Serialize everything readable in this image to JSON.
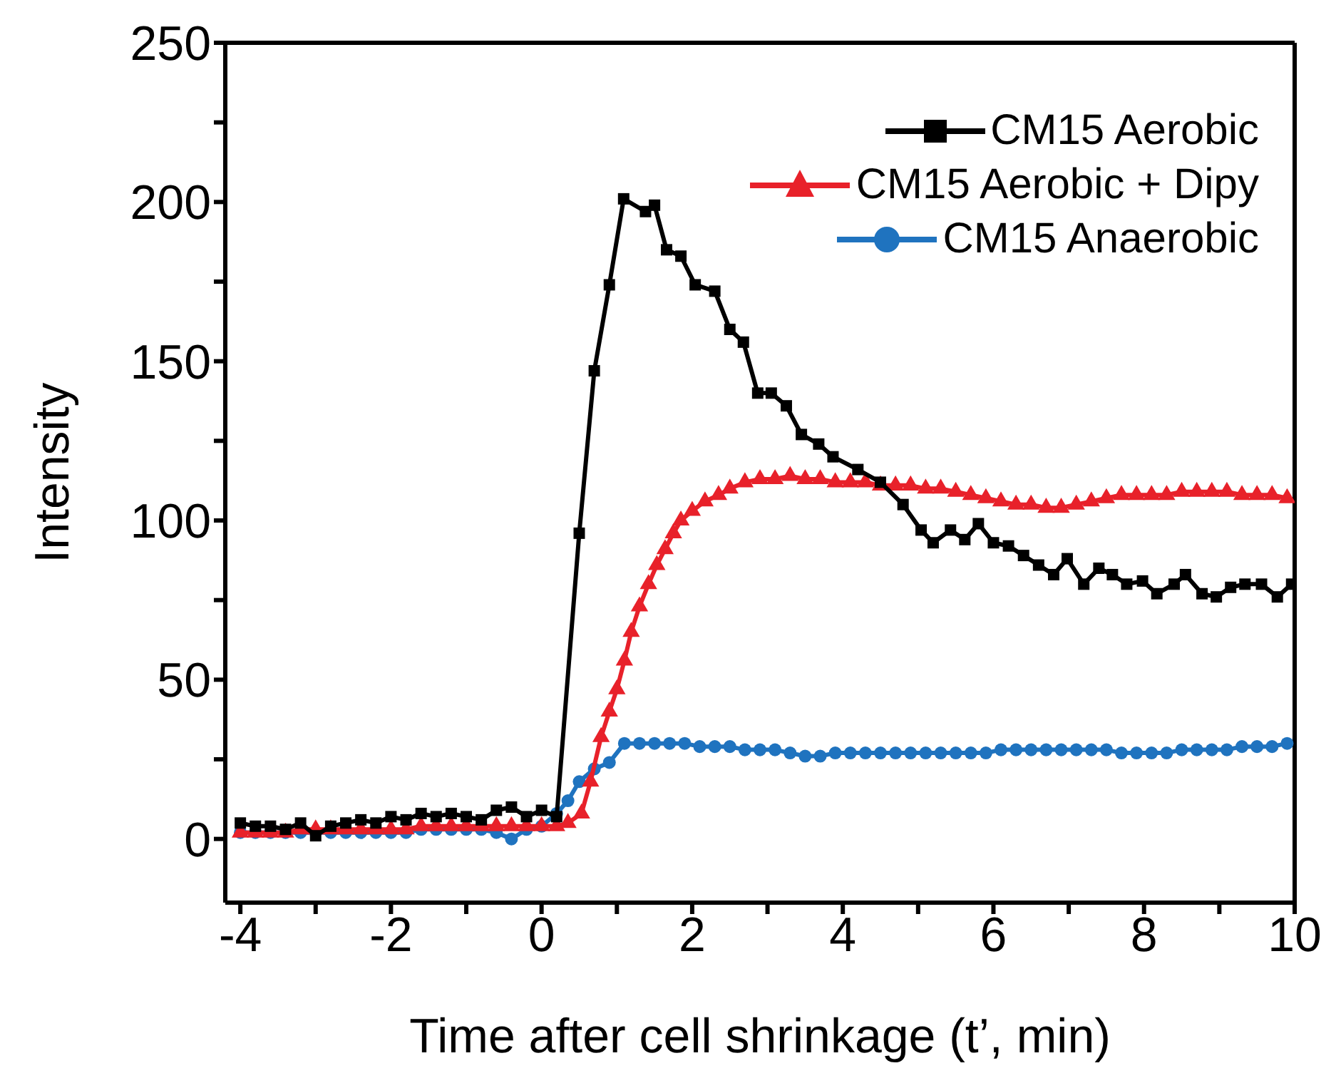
{
  "chart_data": {
    "type": "line",
    "xlabel": "Time after cell shrinkage (t’, min)",
    "ylabel": "Intensity",
    "xlim": [
      -4.2,
      10
    ],
    "ylim": [
      -20,
      250
    ],
    "xticks": [
      -4,
      {
        "value": -3,
        "label": null
      },
      -2,
      {
        "value": -1,
        "label": null
      },
      0,
      {
        "value": 1,
        "label": null
      },
      2,
      {
        "value": 3,
        "label": null
      },
      4,
      {
        "value": 5,
        "label": null
      },
      6,
      {
        "value": 7,
        "label": null
      },
      8,
      {
        "value": 9,
        "label": null
      },
      10
    ],
    "yticks": [
      0,
      {
        "value": 25,
        "label": null
      },
      50,
      {
        "value": 75,
        "label": null
      },
      100,
      {
        "value": 125,
        "label": null
      },
      150,
      {
        "value": 175,
        "label": null
      },
      200,
      {
        "value": 225,
        "label": null
      },
      250
    ],
    "legend": "top right",
    "line_style": "solid",
    "series": [
      {
        "name": "CM15 Aerobic",
        "color": "#000000",
        "marker": "square",
        "x": [
          -4,
          -3.8,
          -3.6,
          -3.4,
          -3.2,
          -3,
          -2.8,
          -2.6,
          -2.4,
          -2.2,
          -2,
          -1.8,
          -1.6,
          -1.4,
          -1.2,
          -1,
          -0.8,
          -0.6,
          -0.4,
          -0.2,
          0,
          0.2,
          0.5,
          0.7,
          0.9,
          1.09,
          1.38,
          1.5,
          1.66,
          1.85,
          2.04,
          2.3,
          2.5,
          2.68,
          2.87,
          3.05,
          3.25,
          3.45,
          3.68,
          3.87,
          4.2,
          4.5,
          4.8,
          5.04,
          5.2,
          5.43,
          5.62,
          5.8,
          6,
          6.2,
          6.4,
          6.6,
          6.8,
          6.98,
          7.2,
          7.4,
          7.58,
          7.77,
          7.98,
          8.17,
          8.4,
          8.55,
          8.77,
          8.96,
          9.15,
          9.34,
          9.56,
          9.77,
          9.96
        ],
        "values": [
          5,
          4,
          4,
          3,
          5,
          1,
          4,
          5,
          6,
          5,
          7,
          6,
          8,
          7,
          8,
          7,
          6,
          9,
          10,
          7,
          9,
          7,
          96,
          147,
          174,
          201,
          197,
          199,
          185,
          183,
          174,
          172,
          160,
          156,
          140,
          140,
          136,
          127,
          124,
          120,
          116,
          112,
          105,
          97,
          93,
          97,
          94,
          99,
          93,
          92,
          89,
          86,
          83,
          88,
          80,
          85,
          83,
          80,
          81,
          77,
          80,
          83,
          77,
          76,
          79,
          80,
          80,
          76,
          80
        ]
      },
      {
        "name": "CM15 Aerobic + Dipy",
        "color": "#e8212a",
        "marker": "triangle",
        "x": [
          -4,
          -3.8,
          -3.6,
          -3.4,
          -3.2,
          -3,
          -2.8,
          -2.6,
          -2.4,
          -2.2,
          -2,
          -1.8,
          -1.6,
          -1.4,
          -1.2,
          -1,
          -0.8,
          -0.6,
          -0.4,
          -0.2,
          0,
          0.2,
          0.35,
          0.53,
          0.65,
          0.79,
          0.9,
          1,
          1.1,
          1.19,
          1.3,
          1.42,
          1.53,
          1.64,
          1.75,
          1.85,
          2,
          2.17,
          2.35,
          2.5,
          2.7,
          2.9,
          3.1,
          3.3,
          3.5,
          3.7,
          3.9,
          4.1,
          4.3,
          4.5,
          4.7,
          4.9,
          5.1,
          5.3,
          5.5,
          5.7,
          5.9,
          6.1,
          6.3,
          6.5,
          6.7,
          6.9,
          7.1,
          7.3,
          7.5,
          7.7,
          7.9,
          8.1,
          8.3,
          8.5,
          8.7,
          8.9,
          9.1,
          9.3,
          9.5,
          9.7,
          9.9
        ],
        "values": [
          2,
          2,
          2,
          2,
          3,
          3,
          3,
          3,
          3,
          3,
          3,
          3,
          4,
          4,
          4,
          4,
          4,
          4,
          4,
          4,
          4,
          4,
          5,
          8,
          18,
          32,
          40,
          47,
          56,
          65,
          73,
          80,
          86,
          91,
          96,
          100,
          103,
          106,
          108,
          110,
          112,
          113,
          113,
          114,
          113,
          113,
          112,
          112,
          112,
          111,
          111,
          111,
          110,
          110,
          109,
          108,
          107,
          106,
          105,
          105,
          104,
          104,
          105,
          106,
          107,
          108,
          108,
          108,
          108,
          109,
          109,
          109,
          109,
          108,
          108,
          108,
          107
        ]
      },
      {
        "name": "CM15 Anaerobic",
        "color": "#1f73bf",
        "marker": "circle",
        "x": [
          -4,
          -3.8,
          -3.6,
          -3.4,
          -3.2,
          -3,
          -2.8,
          -2.6,
          -2.4,
          -2.2,
          -2,
          -1.8,
          -1.6,
          -1.4,
          -1.2,
          -1,
          -0.8,
          -0.6,
          -0.4,
          -0.2,
          0,
          0.2,
          0.35,
          0.5,
          0.7,
          0.9,
          1.1,
          1.3,
          1.5,
          1.7,
          1.9,
          2.1,
          2.3,
          2.5,
          2.7,
          2.9,
          3.1,
          3.3,
          3.5,
          3.7,
          3.9,
          4.1,
          4.3,
          4.5,
          4.7,
          4.9,
          5.1,
          5.3,
          5.5,
          5.7,
          5.9,
          6.1,
          6.3,
          6.5,
          6.7,
          6.9,
          7.1,
          7.3,
          7.5,
          7.7,
          7.9,
          8.1,
          8.3,
          8.5,
          8.7,
          8.9,
          9.1,
          9.3,
          9.5,
          9.7,
          9.9
        ],
        "values": [
          2,
          2,
          2,
          2,
          2,
          2,
          2,
          2,
          2,
          2,
          2,
          2,
          3,
          3,
          3,
          3,
          3,
          2,
          0,
          3,
          4,
          8,
          12,
          18,
          22,
          24,
          30,
          30,
          30,
          30,
          30,
          29,
          29,
          29,
          28,
          28,
          28,
          27,
          26,
          26,
          27,
          27,
          27,
          27,
          27,
          27,
          27,
          27,
          27,
          27,
          27,
          28,
          28,
          28,
          28,
          28,
          28,
          28,
          28,
          27,
          27,
          27,
          27,
          28,
          28,
          28,
          28,
          29,
          29,
          29,
          30
        ]
      }
    ]
  }
}
